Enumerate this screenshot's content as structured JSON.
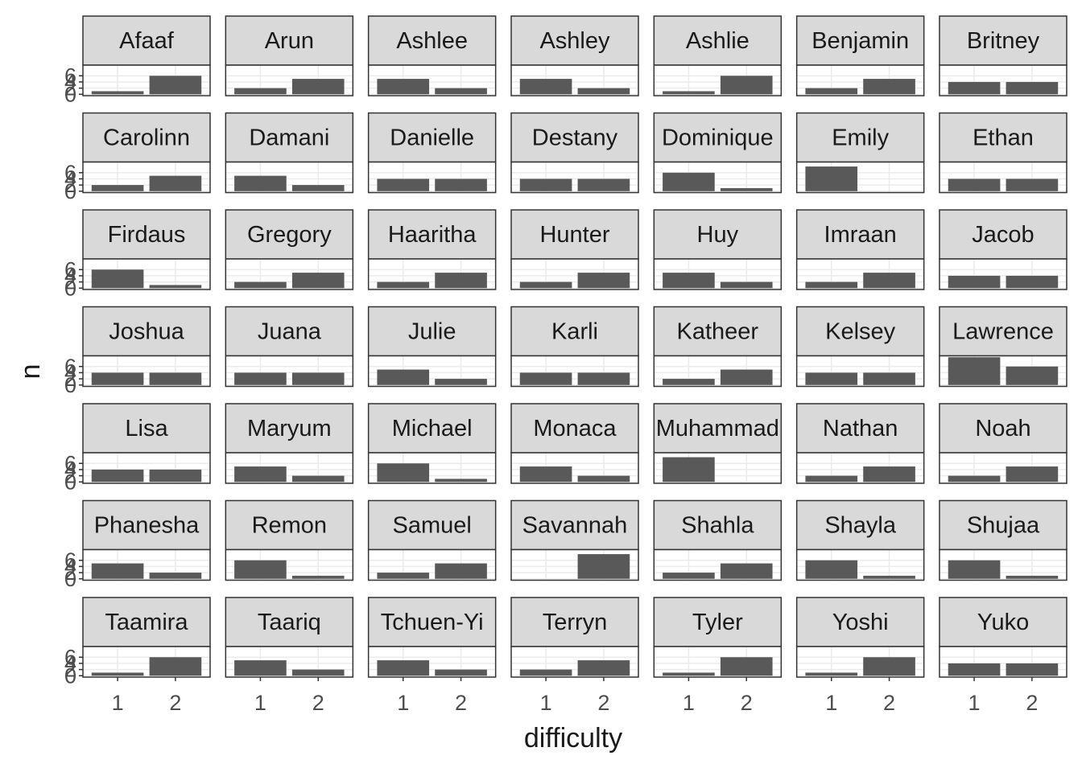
{
  "chart_data": {
    "type": "bar",
    "xlabel": "difficulty",
    "ylabel": "n",
    "color": "#595959",
    "categories": [
      "1",
      "2"
    ],
    "ylim": [
      -0.45,
      9.45
    ],
    "yticks": [
      0,
      2,
      4,
      6
    ],
    "grid": true,
    "facets": [
      {
        "label": "Afaaf",
        "values": [
          1,
          6
        ]
      },
      {
        "label": "Arun",
        "values": [
          2,
          5
        ]
      },
      {
        "label": "Ashlee",
        "values": [
          5,
          2
        ]
      },
      {
        "label": "Ashley",
        "values": [
          5,
          2
        ]
      },
      {
        "label": "Ashlie",
        "values": [
          1,
          6
        ]
      },
      {
        "label": "Benjamin",
        "values": [
          2,
          5
        ]
      },
      {
        "label": "Britney",
        "values": [
          4,
          4
        ]
      },
      {
        "label": "Carolinn",
        "values": [
          2,
          5
        ]
      },
      {
        "label": "Damani",
        "values": [
          5,
          2
        ]
      },
      {
        "label": "Danielle",
        "values": [
          4,
          4
        ]
      },
      {
        "label": "Destany",
        "values": [
          4,
          4
        ]
      },
      {
        "label": "Dominique",
        "values": [
          6,
          1
        ]
      },
      {
        "label": "Emily",
        "values": [
          8,
          0
        ]
      },
      {
        "label": "Ethan",
        "values": [
          4,
          4
        ]
      },
      {
        "label": "Firdaus",
        "values": [
          6,
          1
        ]
      },
      {
        "label": "Gregory",
        "values": [
          2,
          5
        ]
      },
      {
        "label": "Haaritha",
        "values": [
          2,
          5
        ]
      },
      {
        "label": "Hunter",
        "values": [
          2,
          5
        ]
      },
      {
        "label": "Huy",
        "values": [
          5,
          2
        ]
      },
      {
        "label": "Imraan",
        "values": [
          2,
          5
        ]
      },
      {
        "label": "Jacob",
        "values": [
          4,
          4
        ]
      },
      {
        "label": "Joshua",
        "values": [
          4,
          4
        ]
      },
      {
        "label": "Juana",
        "values": [
          4,
          4
        ]
      },
      {
        "label": "Julie",
        "values": [
          5,
          2
        ]
      },
      {
        "label": "Karli",
        "values": [
          4,
          4
        ]
      },
      {
        "label": "Katheer",
        "values": [
          2,
          5
        ]
      },
      {
        "label": "Kelsey",
        "values": [
          4,
          4
        ]
      },
      {
        "label": "Lawrence",
        "values": [
          9,
          6
        ]
      },
      {
        "label": "Lisa",
        "values": [
          4,
          4
        ]
      },
      {
        "label": "Maryum",
        "values": [
          5,
          2
        ]
      },
      {
        "label": "Michael",
        "values": [
          6,
          1
        ]
      },
      {
        "label": "Monaca",
        "values": [
          5,
          2
        ]
      },
      {
        "label": "Muhammad",
        "values": [
          8,
          0
        ]
      },
      {
        "label": "Nathan",
        "values": [
          2,
          5
        ]
      },
      {
        "label": "Noah",
        "values": [
          2,
          5
        ]
      },
      {
        "label": "Phanesha",
        "values": [
          5,
          2
        ]
      },
      {
        "label": "Remon",
        "values": [
          6,
          1
        ]
      },
      {
        "label": "Samuel",
        "values": [
          2,
          5
        ]
      },
      {
        "label": "Savannah",
        "values": [
          0,
          8
        ]
      },
      {
        "label": "Shahla",
        "values": [
          2,
          5
        ]
      },
      {
        "label": "Shayla",
        "values": [
          6,
          1
        ]
      },
      {
        "label": "Shujaa",
        "values": [
          6,
          1
        ]
      },
      {
        "label": "Taamira",
        "values": [
          1,
          6
        ]
      },
      {
        "label": "Taariq",
        "values": [
          5,
          2
        ]
      },
      {
        "label": "Tchuen-Yi",
        "values": [
          5,
          2
        ]
      },
      {
        "label": "Terryn",
        "values": [
          2,
          5
        ]
      },
      {
        "label": "Tyler",
        "values": [
          1,
          6
        ]
      },
      {
        "label": "Yoshi",
        "values": [
          1,
          6
        ]
      },
      {
        "label": "Yuko",
        "values": [
          4,
          4
        ]
      }
    ]
  }
}
